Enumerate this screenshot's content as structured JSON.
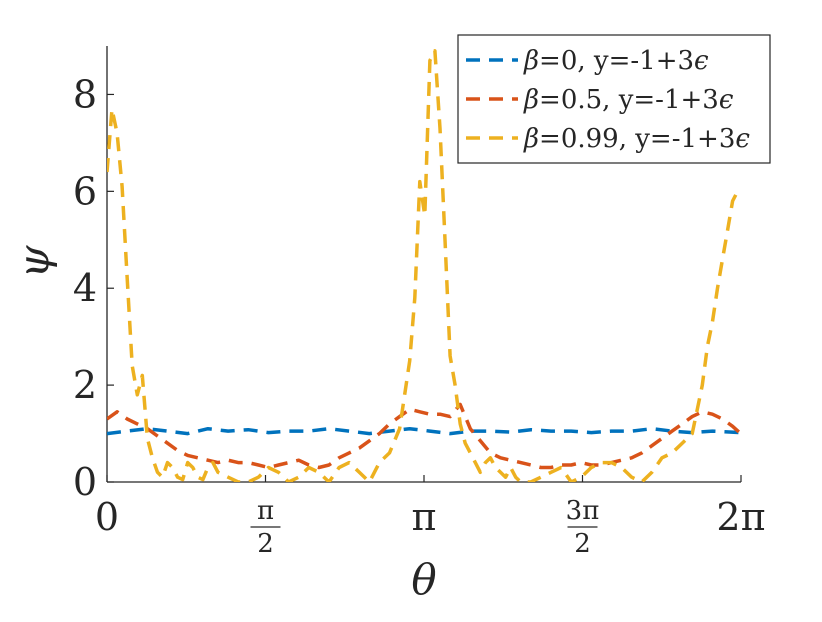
{
  "chart_data": {
    "type": "line",
    "xlabel": "θ",
    "ylabel": "ψ",
    "xlim": [
      0,
      6.2832
    ],
    "ylim": [
      0,
      9
    ],
    "x_ticks": [
      {
        "value": 0,
        "label": "0"
      },
      {
        "value": 1.5708,
        "num": "π",
        "den": "2"
      },
      {
        "value": 3.1416,
        "label": "π"
      },
      {
        "value": 4.7124,
        "num": "3π",
        "den": "2"
      },
      {
        "value": 6.2832,
        "label": "2π"
      }
    ],
    "y_ticks": [
      {
        "value": 0,
        "label": "0"
      },
      {
        "value": 2,
        "label": "2"
      },
      {
        "value": 4,
        "label": "4"
      },
      {
        "value": 6,
        "label": "6"
      },
      {
        "value": 8,
        "label": "8"
      }
    ],
    "legend_position": "top-right",
    "series": [
      {
        "name": "β=0, y=-1+3ϵ",
        "name_sym": "β",
        "name_rest": "=0, y=-1+3",
        "name_eps": "ϵ",
        "color": "#0072BD",
        "points": [
          [
            0,
            1.0
          ],
          [
            0.2,
            1.05
          ],
          [
            0.4,
            1.1
          ],
          [
            0.6,
            1.05
          ],
          [
            0.8,
            1.0
          ],
          [
            1.0,
            1.1
          ],
          [
            1.2,
            1.05
          ],
          [
            1.4,
            1.08
          ],
          [
            1.6,
            1.02
          ],
          [
            1.8,
            1.05
          ],
          [
            2.0,
            1.05
          ],
          [
            2.2,
            1.1
          ],
          [
            2.4,
            1.05
          ],
          [
            2.6,
            1.0
          ],
          [
            2.8,
            1.05
          ],
          [
            3.0,
            1.1
          ],
          [
            3.2,
            1.05
          ],
          [
            3.4,
            1.0
          ],
          [
            3.6,
            1.05
          ],
          [
            3.8,
            1.05
          ],
          [
            4.0,
            1.03
          ],
          [
            4.2,
            1.08
          ],
          [
            4.4,
            1.05
          ],
          [
            4.6,
            1.05
          ],
          [
            4.8,
            1.02
          ],
          [
            5.0,
            1.05
          ],
          [
            5.2,
            1.05
          ],
          [
            5.4,
            1.1
          ],
          [
            5.6,
            1.05
          ],
          [
            5.8,
            1.02
          ],
          [
            6.0,
            1.05
          ],
          [
            6.28,
            1.02
          ]
        ]
      },
      {
        "name": "β=0.5, y=-1+3ϵ",
        "name_sym": "β",
        "name_rest": "=0.5, y=-1+3",
        "name_eps": "ϵ",
        "color": "#D95319",
        "points": [
          [
            0,
            1.3
          ],
          [
            0.1,
            1.45
          ],
          [
            0.2,
            1.3
          ],
          [
            0.3,
            1.2
          ],
          [
            0.4,
            1.1
          ],
          [
            0.5,
            0.95
          ],
          [
            0.6,
            0.8
          ],
          [
            0.7,
            0.65
          ],
          [
            0.8,
            0.55
          ],
          [
            0.9,
            0.5
          ],
          [
            1.0,
            0.45
          ],
          [
            1.1,
            0.4
          ],
          [
            1.2,
            0.45
          ],
          [
            1.3,
            0.4
          ],
          [
            1.4,
            0.4
          ],
          [
            1.5,
            0.35
          ],
          [
            1.6,
            0.3
          ],
          [
            1.7,
            0.35
          ],
          [
            1.8,
            0.4
          ],
          [
            1.9,
            0.45
          ],
          [
            2.0,
            0.35
          ],
          [
            2.1,
            0.3
          ],
          [
            2.2,
            0.35
          ],
          [
            2.3,
            0.5
          ],
          [
            2.4,
            0.6
          ],
          [
            2.5,
            0.7
          ],
          [
            2.6,
            0.85
          ],
          [
            2.7,
            1.0
          ],
          [
            2.8,
            1.2
          ],
          [
            2.9,
            1.35
          ],
          [
            3.0,
            1.5
          ],
          [
            3.1,
            1.45
          ],
          [
            3.2,
            1.4
          ],
          [
            3.3,
            1.4
          ],
          [
            3.4,
            1.35
          ],
          [
            3.5,
            1.6
          ],
          [
            3.6,
            1.1
          ],
          [
            3.7,
            0.85
          ],
          [
            3.8,
            0.6
          ],
          [
            3.9,
            0.5
          ],
          [
            4.0,
            0.45
          ],
          [
            4.1,
            0.4
          ],
          [
            4.2,
            0.35
          ],
          [
            4.3,
            0.3
          ],
          [
            4.4,
            0.3
          ],
          [
            4.5,
            0.35
          ],
          [
            4.6,
            0.35
          ],
          [
            4.7,
            0.4
          ],
          [
            4.8,
            0.35
          ],
          [
            4.9,
            0.35
          ],
          [
            5.0,
            0.4
          ],
          [
            5.1,
            0.45
          ],
          [
            5.2,
            0.5
          ],
          [
            5.3,
            0.6
          ],
          [
            5.4,
            0.75
          ],
          [
            5.5,
            0.9
          ],
          [
            5.6,
            1.05
          ],
          [
            5.7,
            1.2
          ],
          [
            5.8,
            1.35
          ],
          [
            5.9,
            1.45
          ],
          [
            6.0,
            1.4
          ],
          [
            6.1,
            1.3
          ],
          [
            6.2,
            1.15
          ],
          [
            6.28,
            1.0
          ]
        ]
      },
      {
        "name": "β=0.99, y=-1+3ϵ",
        "name_sym": "β",
        "name_rest": "=0.99, y=-1+3",
        "name_eps": "ϵ",
        "color": "#EDB120",
        "points": [
          [
            0,
            6.4
          ],
          [
            0.05,
            7.7
          ],
          [
            0.1,
            7.2
          ],
          [
            0.15,
            6.1
          ],
          [
            0.2,
            4.2
          ],
          [
            0.25,
            2.4
          ],
          [
            0.3,
            1.8
          ],
          [
            0.35,
            2.2
          ],
          [
            0.4,
            0.9
          ],
          [
            0.45,
            0.5
          ],
          [
            0.5,
            0.2
          ],
          [
            0.55,
            0.1
          ],
          [
            0.6,
            0.4
          ],
          [
            0.65,
            0.3
          ],
          [
            0.7,
            0.1
          ],
          [
            0.75,
            0.05
          ],
          [
            0.8,
            0.4
          ],
          [
            0.85,
            0.3
          ],
          [
            0.9,
            0.1
          ],
          [
            0.95,
            0.05
          ],
          [
            1.0,
            0.3
          ],
          [
            1.05,
            0.4
          ],
          [
            1.1,
            0.2
          ],
          [
            1.2,
            0.1
          ],
          [
            1.3,
            0.0
          ],
          [
            1.4,
            0.0
          ],
          [
            1.5,
            0.1
          ],
          [
            1.6,
            0.3
          ],
          [
            1.7,
            0.2
          ],
          [
            1.8,
            0.0
          ],
          [
            1.9,
            0.1
          ],
          [
            2.0,
            0.3
          ],
          [
            2.1,
            0.2
          ],
          [
            2.2,
            0.0
          ],
          [
            2.3,
            0.3
          ],
          [
            2.4,
            0.4
          ],
          [
            2.5,
            0.2
          ],
          [
            2.6,
            0.0
          ],
          [
            2.7,
            0.4
          ],
          [
            2.8,
            0.6
          ],
          [
            2.9,
            1.1
          ],
          [
            3.0,
            2.5
          ],
          [
            3.05,
            3.8
          ],
          [
            3.1,
            6.2
          ],
          [
            3.15,
            5.5
          ],
          [
            3.2,
            8.7
          ],
          [
            3.25,
            8.9
          ],
          [
            3.3,
            7.3
          ],
          [
            3.35,
            5.0
          ],
          [
            3.4,
            2.6
          ],
          [
            3.45,
            2.0
          ],
          [
            3.5,
            1.2
          ],
          [
            3.55,
            0.8
          ],
          [
            3.6,
            0.6
          ],
          [
            3.65,
            0.4
          ],
          [
            3.7,
            0.2
          ],
          [
            3.75,
            0.4
          ],
          [
            3.8,
            0.5
          ],
          [
            3.85,
            0.3
          ],
          [
            3.9,
            0.2
          ],
          [
            3.95,
            0.1
          ],
          [
            4.0,
            0.3
          ],
          [
            4.05,
            0.1
          ],
          [
            4.1,
            0.0
          ],
          [
            4.2,
            0.0
          ],
          [
            4.3,
            0.1
          ],
          [
            4.4,
            0.2
          ],
          [
            4.5,
            0.3
          ],
          [
            4.6,
            0.0
          ],
          [
            4.7,
            0.1
          ],
          [
            4.8,
            0.3
          ],
          [
            4.9,
            0.4
          ],
          [
            5.0,
            0.4
          ],
          [
            5.1,
            0.3
          ],
          [
            5.2,
            0.1
          ],
          [
            5.3,
            0.0
          ],
          [
            5.4,
            0.2
          ],
          [
            5.5,
            0.5
          ],
          [
            5.6,
            0.6
          ],
          [
            5.7,
            0.8
          ],
          [
            5.8,
            1.0
          ],
          [
            5.85,
            1.5
          ],
          [
            5.9,
            2.0
          ],
          [
            5.95,
            2.8
          ],
          [
            6.0,
            3.3
          ],
          [
            6.05,
            4.0
          ],
          [
            6.1,
            4.6
          ],
          [
            6.15,
            5.2
          ],
          [
            6.2,
            5.8
          ],
          [
            6.25,
            6.0
          ]
        ]
      }
    ]
  }
}
